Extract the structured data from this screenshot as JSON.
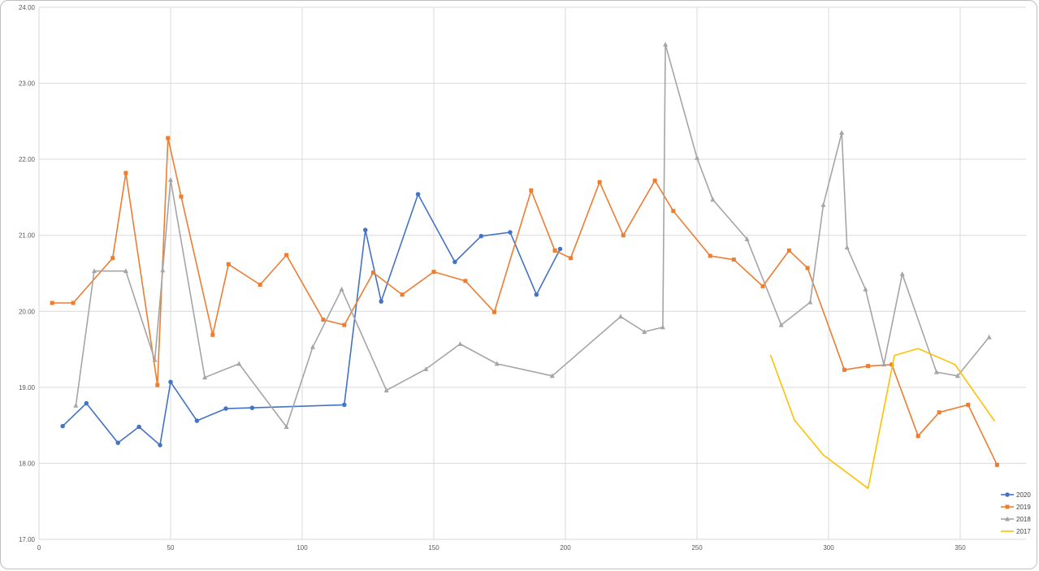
{
  "chart_data": {
    "type": "line",
    "title": "",
    "xlabel": "",
    "ylabel": "",
    "xlim": [
      0,
      375
    ],
    "ylim": [
      17,
      24
    ],
    "x_ticks": [
      0,
      50,
      100,
      150,
      200,
      250,
      300,
      350
    ],
    "x_tick_labels": [
      "0",
      "50",
      "100",
      "150",
      "200",
      "250",
      "300",
      "350"
    ],
    "y_ticks": [
      17,
      18,
      19,
      20,
      21,
      22,
      23,
      24
    ],
    "y_tick_labels": [
      "17.00",
      "18.00",
      "19.00",
      "20.00",
      "21.00",
      "22.00",
      "23.00",
      "24.00"
    ],
    "grid": true,
    "legend_position": "bottom-right",
    "series": [
      {
        "name": "2020",
        "color": "#4472C4",
        "marker": "circle",
        "points": [
          [
            9,
            18.49
          ],
          [
            18,
            18.79
          ],
          [
            30,
            18.27
          ],
          [
            38,
            18.48
          ],
          [
            46,
            18.24
          ],
          [
            50,
            19.07
          ],
          [
            60,
            18.56
          ],
          [
            71,
            18.72
          ],
          [
            81,
            18.73
          ],
          [
            116,
            18.77
          ],
          [
            124,
            21.07
          ],
          [
            130,
            20.13
          ],
          [
            144,
            21.54
          ],
          [
            158,
            20.65
          ],
          [
            168,
            20.99
          ],
          [
            179,
            21.04
          ],
          [
            189,
            20.22
          ],
          [
            198,
            20.82
          ]
        ]
      },
      {
        "name": "2019",
        "color": "#ED7D31",
        "marker": "square",
        "points": [
          [
            5,
            20.11
          ],
          [
            13,
            20.11
          ],
          [
            28,
            20.7
          ],
          [
            33,
            21.82
          ],
          [
            45,
            19.03
          ],
          [
            49,
            22.28
          ],
          [
            54,
            21.51
          ],
          [
            66,
            19.69
          ],
          [
            72,
            20.62
          ],
          [
            84,
            20.35
          ],
          [
            94,
            20.74
          ],
          [
            108,
            19.89
          ],
          [
            116,
            19.82
          ],
          [
            127,
            20.51
          ],
          [
            138,
            20.22
          ],
          [
            150,
            20.52
          ],
          [
            162,
            20.4
          ],
          [
            173,
            19.99
          ],
          [
            187,
            21.59
          ],
          [
            196,
            20.8
          ],
          [
            202,
            20.7
          ],
          [
            213,
            21.7
          ],
          [
            222,
            21.0
          ],
          [
            234,
            21.72
          ],
          [
            241,
            21.32
          ],
          [
            255,
            20.73
          ],
          [
            264,
            20.68
          ],
          [
            275,
            20.33
          ],
          [
            285,
            20.8
          ],
          [
            292,
            20.57
          ],
          [
            306,
            19.23
          ],
          [
            315,
            19.28
          ],
          [
            324,
            19.3
          ],
          [
            334,
            18.36
          ],
          [
            342,
            18.67
          ],
          [
            353,
            18.77
          ],
          [
            364,
            17.98
          ]
        ]
      },
      {
        "name": "2018",
        "color": "#A5A5A5",
        "marker": "triangle",
        "points": [
          [
            14,
            18.76
          ],
          [
            21,
            20.53
          ],
          [
            33,
            20.53
          ],
          [
            44,
            19.36
          ],
          [
            47,
            20.54
          ],
          [
            50,
            21.73
          ],
          [
            63,
            19.13
          ],
          [
            76,
            19.31
          ],
          [
            94,
            18.48
          ],
          [
            104,
            19.53
          ],
          [
            115,
            20.29
          ],
          [
            132,
            18.96
          ],
          [
            147,
            19.24
          ],
          [
            160,
            19.57
          ],
          [
            174,
            19.31
          ],
          [
            195,
            19.15
          ],
          [
            221,
            19.93
          ],
          [
            230,
            19.73
          ],
          [
            237,
            19.79
          ],
          [
            238,
            23.51
          ],
          [
            250,
            22.02
          ],
          [
            256,
            21.47
          ],
          [
            269,
            20.95
          ],
          [
            282,
            19.82
          ],
          [
            293,
            20.12
          ],
          [
            298,
            21.4
          ],
          [
            305,
            22.35
          ],
          [
            307,
            20.84
          ],
          [
            314,
            20.29
          ],
          [
            321,
            19.3
          ],
          [
            328,
            20.49
          ],
          [
            341,
            19.2
          ],
          [
            349,
            19.15
          ],
          [
            361,
            19.66
          ]
        ]
      },
      {
        "name": "2017",
        "color": "#FFC000",
        "marker": "none",
        "points": [
          [
            278,
            19.42
          ],
          [
            287,
            18.57
          ],
          [
            298,
            18.11
          ],
          [
            315,
            17.67
          ],
          [
            325,
            19.42
          ],
          [
            334,
            19.51
          ],
          [
            348,
            19.3
          ],
          [
            363,
            18.56
          ]
        ]
      }
    ]
  }
}
